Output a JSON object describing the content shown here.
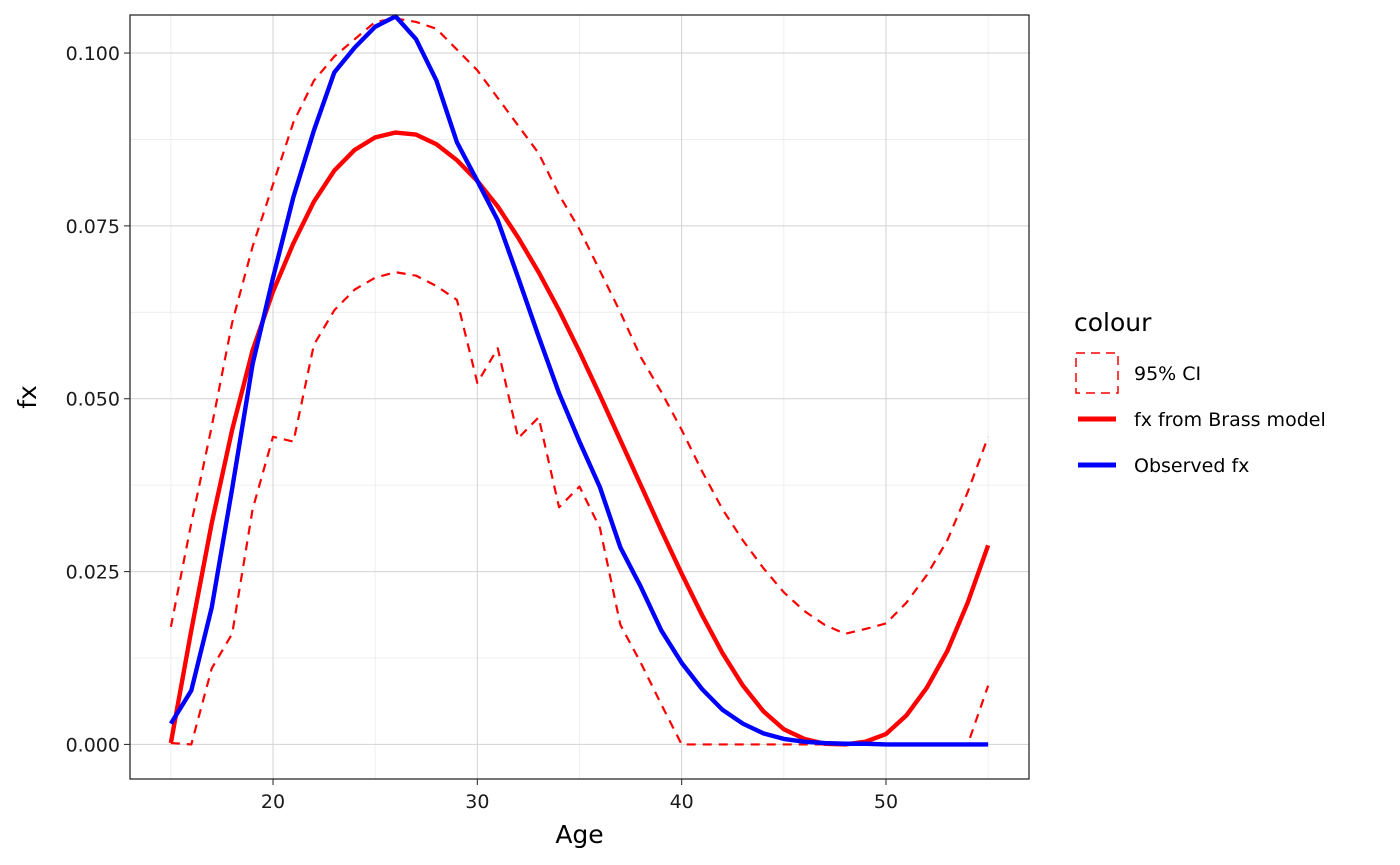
{
  "chart_data": {
    "type": "line",
    "xlabel": "Age",
    "ylabel": "fx",
    "xlim": [
      13,
      57
    ],
    "ylim": [
      -0.005,
      0.1055
    ],
    "x_ticks": [
      20,
      30,
      40,
      50
    ],
    "y_ticks": [
      0.0,
      0.025,
      0.05,
      0.075,
      0.1
    ],
    "x_tick_labels": [
      "20",
      "30",
      "40",
      "50"
    ],
    "y_tick_labels": [
      "0.000",
      "0.025",
      "0.050",
      "0.075",
      "0.100"
    ],
    "grid": true,
    "legend": {
      "title": "colour",
      "placement": "right",
      "entries": [
        "95% CI",
        "fx from Brass model",
        "Observed fx"
      ]
    },
    "x": [
      15,
      16,
      17,
      18,
      19,
      20,
      21,
      22,
      23,
      24,
      25,
      26,
      27,
      28,
      29,
      30,
      31,
      32,
      33,
      34,
      35,
      36,
      37,
      38,
      39,
      40,
      41,
      42,
      43,
      44,
      45,
      46,
      47,
      48,
      49,
      50,
      51,
      52,
      53,
      54,
      55
    ],
    "series": [
      {
        "name": "95% CI",
        "color": "#ff0000",
        "style": "dashed",
        "band": "upper",
        "values": [
          0.017,
          0.032,
          0.046,
          0.061,
          0.072,
          0.081,
          0.09,
          0.096,
          0.0995,
          0.102,
          0.1045,
          0.105,
          0.1045,
          0.1035,
          0.1005,
          0.0975,
          0.0935,
          0.0895,
          0.0855,
          0.0795,
          0.0745,
          0.0685,
          0.0625,
          0.056,
          0.051,
          0.0455,
          0.0395,
          0.034,
          0.0295,
          0.0255,
          0.022,
          0.0193,
          0.0173,
          0.016,
          0.0167,
          0.0175,
          0.0205,
          0.0245,
          0.0295,
          0.0365,
          0.0445
        ]
      },
      {
        "name": "95% CI",
        "color": "#ff0000",
        "style": "dashed",
        "band": "lower",
        "values": [
          0.0002,
          0.0,
          0.011,
          0.016,
          0.034,
          0.0445,
          0.0438,
          0.0578,
          0.0628,
          0.0658,
          0.0675,
          0.0683,
          0.0678,
          0.0663,
          0.0643,
          0.0523,
          0.0573,
          0.0443,
          0.0473,
          0.0343,
          0.0373,
          0.0313,
          0.0173,
          0.0118,
          0.0058,
          0.0,
          0.0,
          0.0,
          0.0,
          0.0,
          0.0,
          0.0,
          0.0,
          0.0,
          0.0,
          0.0,
          0.0,
          0.0,
          0.0,
          0.0,
          0.0085
        ]
      },
      {
        "name": "fx from Brass model",
        "color": "#ff0000",
        "style": "solid",
        "values": [
          0.0002,
          0.0165,
          0.032,
          0.0455,
          0.057,
          0.0655,
          0.0725,
          0.0785,
          0.083,
          0.086,
          0.0878,
          0.0885,
          0.0882,
          0.0868,
          0.0845,
          0.0815,
          0.0778,
          0.0733,
          0.0683,
          0.0628,
          0.0568,
          0.0505,
          0.044,
          0.0375,
          0.031,
          0.0247,
          0.0187,
          0.0132,
          0.0085,
          0.0048,
          0.0022,
          0.0008,
          0.0001,
          0.0,
          0.0004,
          0.0015,
          0.0042,
          0.0082,
          0.0135,
          0.0205,
          0.0288
        ]
      },
      {
        "name": "Observed fx",
        "color": "#0000ff",
        "style": "solid",
        "values": [
          0.003,
          0.0078,
          0.0198,
          0.037,
          0.055,
          0.0675,
          0.0792,
          0.0888,
          0.0972,
          0.1008,
          0.1038,
          0.1053,
          0.102,
          0.096,
          0.0871,
          0.0815,
          0.0758,
          0.0675,
          0.059,
          0.0508,
          0.0438,
          0.0372,
          0.0285,
          0.0228,
          0.0165,
          0.0118,
          0.008,
          0.005,
          0.003,
          0.0016,
          0.0008,
          0.0004,
          0.0002,
          0.0001,
          0.0001,
          0.0,
          0.0,
          0.0,
          0.0,
          0.0,
          0.0
        ]
      }
    ]
  }
}
